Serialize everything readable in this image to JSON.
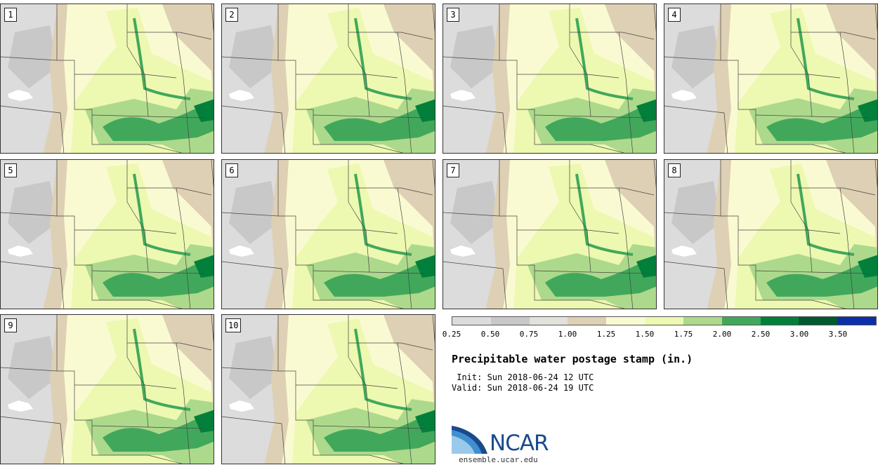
{
  "panels": [
    {
      "label": "1"
    },
    {
      "label": "2"
    },
    {
      "label": "3"
    },
    {
      "label": "4"
    },
    {
      "label": "5"
    },
    {
      "label": "6"
    },
    {
      "label": "7"
    },
    {
      "label": "8"
    },
    {
      "label": "9"
    },
    {
      "label": "10"
    }
  ],
  "colorbar": {
    "colors": [
      "#dcdcdc",
      "#c8c8c8",
      "#e3e2da",
      "#ded0b4",
      "#fafad2",
      "#edf8b1",
      "#add98c",
      "#41a85b",
      "#02803b",
      "#005a2f",
      "#0c2fa8"
    ],
    "tick_labels": [
      "0.25",
      "0.50",
      "0.75",
      "1.00",
      "1.25",
      "1.50",
      "1.75",
      "2.00",
      "2.50",
      "3.00",
      "3.50"
    ]
  },
  "title": "Precipitable water postage stamp (in.)",
  "init": " Init: Sun 2018-06-24 12 UTC",
  "valid": "Valid: Sun 2018-06-24 19 UTC",
  "logo": {
    "text": "NCAR",
    "site": "ensemble.ucar.edu"
  }
}
